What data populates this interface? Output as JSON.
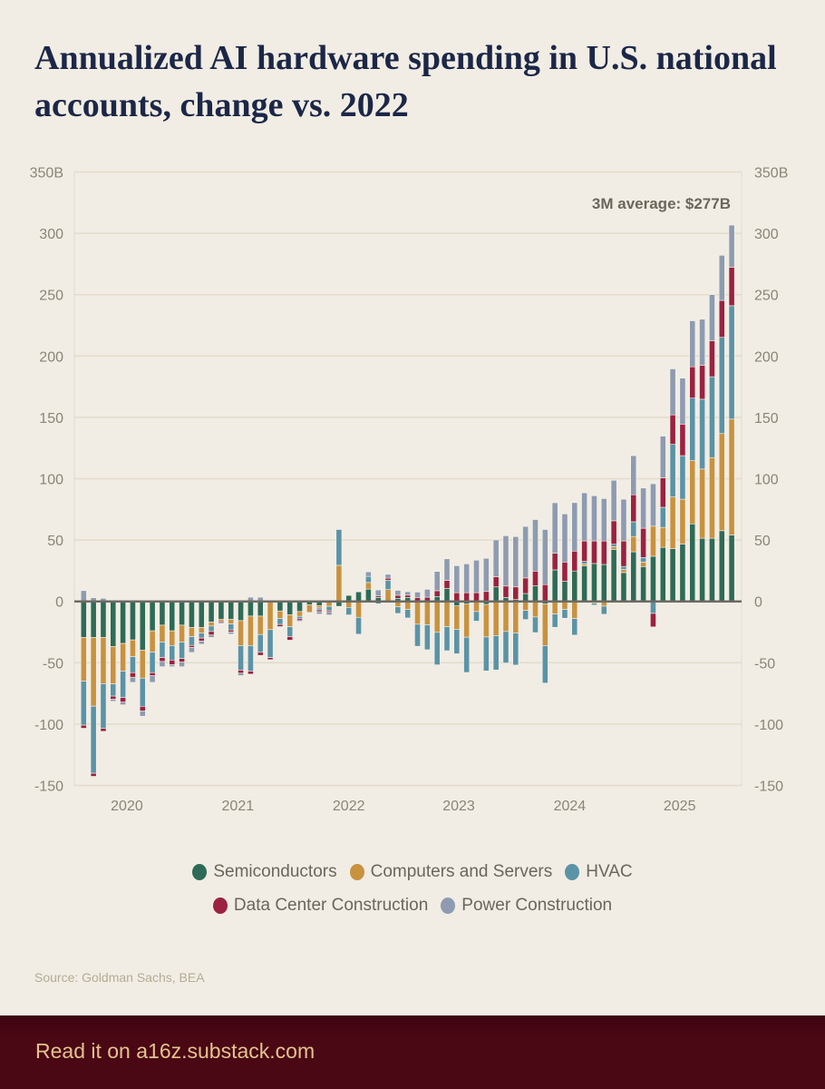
{
  "title": "Annualized AI hardware spending in U.S. national accounts, change vs. 2022",
  "chart_data": {
    "type": "bar",
    "stacked": true,
    "title": "Annualized AI hardware spending in U.S. national accounts, change vs. 2022",
    "ylabel": "",
    "xlabel": "",
    "ylim": [
      -150,
      350
    ],
    "yticks": [
      -150,
      -100,
      -50,
      0,
      50,
      100,
      150,
      200,
      250,
      300,
      350
    ],
    "ytick_labels": [
      "-150",
      "-100",
      "-50",
      "0",
      "50",
      "100",
      "150",
      "200",
      "250",
      "300",
      "350B"
    ],
    "y_axes": "both",
    "grid": true,
    "xticks": [
      {
        "label": "2020",
        "at": 4.4
      },
      {
        "label": "2021",
        "at": 15.7
      },
      {
        "label": "2022",
        "at": 27.0
      },
      {
        "label": "2023",
        "at": 38.2
      },
      {
        "label": "2024",
        "at": 49.5
      },
      {
        "label": "2025",
        "at": 60.7
      }
    ],
    "annotation": "3M average: $277B",
    "legend_position": "bottom",
    "series": [
      {
        "name": "Semiconductors",
        "color": "#2e6b57",
        "values": [
          -29.4,
          -29.4,
          -29.4,
          -36.8,
          -34.3,
          -31.4,
          -39.7,
          -24,
          -19.4,
          -24,
          -19.4,
          -21.3,
          -21.3,
          -16.9,
          -14.5,
          -14.7,
          -15.7,
          -12,
          -12,
          0,
          -7.8,
          -11,
          -8.3,
          -2.9,
          -3.4,
          0,
          -4,
          4.9,
          7.8,
          10,
          3.2,
          0,
          2.5,
          3.2,
          0,
          0,
          4,
          10.5,
          -3.7,
          -2.2,
          0,
          -2.5,
          11.8,
          3.2,
          1.5,
          6.4,
          12.7,
          -2,
          25.7,
          16.4,
          24.8,
          28.9,
          30.9,
          30.1,
          42.4,
          23.5,
          40.4,
          28.4,
          36.8,
          44.1,
          42.9,
          46.8,
          63.2,
          51.5,
          51.5,
          57.6,
          54.2
        ]
      },
      {
        "name": "Computers and Servers",
        "color": "#c8923f",
        "values": [
          -35.5,
          -56,
          -37.7,
          -30.4,
          -22.5,
          -13.7,
          -22.8,
          -17.4,
          -13.7,
          -12,
          -13.7,
          -7.4,
          -4.4,
          -3.2,
          -1.5,
          -3.7,
          -20.3,
          -24,
          -15,
          -23,
          -6.1,
          -9.6,
          -3.9,
          -6.1,
          -2,
          -4,
          29.4,
          -4.9,
          -13,
          5.4,
          0,
          9.6,
          -4.4,
          -6.6,
          -18.6,
          -19.1,
          -25.2,
          -20.6,
          -19.1,
          -27,
          -8.3,
          -26.5,
          -27.9,
          -24.5,
          -25.7,
          -7.4,
          -12.7,
          -34,
          -10.3,
          -6.6,
          -14,
          1.7,
          -1.5,
          -3.9,
          2.2,
          2.5,
          12.5,
          3.7,
          24.5,
          16.2,
          42.2,
          36.5,
          51.5,
          56.4,
          65.7,
          79.2,
          94.4
        ]
      },
      {
        "name": "HVAC",
        "color": "#5b93a6",
        "values": [
          -36,
          -54.7,
          -36.3,
          -10,
          -21.6,
          -13,
          -23,
          -16.7,
          -12.7,
          -11.8,
          -13.5,
          -7.2,
          -4.2,
          -4.4,
          0,
          -4.9,
          -20,
          -20.8,
          -14.5,
          -22.8,
          -4.9,
          -8.1,
          -2,
          0,
          -1.5,
          -3.7,
          29.2,
          -6.1,
          -13.7,
          5,
          -2,
          7.6,
          -5.4,
          -6.9,
          -18,
          -20.3,
          -26.5,
          -19.6,
          -19.9,
          -28.7,
          -7.8,
          -27.7,
          -28,
          -25.7,
          -26.2,
          -7.4,
          -12.7,
          -30.6,
          -10.8,
          -7.1,
          -13.5,
          2,
          -1.5,
          -6.6,
          2,
          2.5,
          12,
          3.7,
          -9.8,
          16.4,
          42.9,
          35.5,
          51,
          56.9,
          65.9,
          78.4,
          92.4
        ]
      },
      {
        "name": "Data Center Construction",
        "color": "#9b2240",
        "values": [
          -2.5,
          -2.5,
          -2.5,
          -2.5,
          -3.7,
          -3.7,
          -3.7,
          -2.5,
          -3.2,
          -3.7,
          -2.9,
          -1.7,
          -2.5,
          -2.9,
          -1.2,
          -1.7,
          -2.5,
          -2.5,
          -2.5,
          -1.7,
          -1.7,
          -2.9,
          -1.5,
          0,
          -1.5,
          -1.2,
          0,
          0,
          0,
          0,
          1.2,
          1.7,
          2.5,
          1.9,
          3.2,
          3.4,
          4.7,
          6.6,
          7.1,
          7.1,
          7.1,
          8.1,
          8.3,
          9.3,
          10.3,
          12.7,
          12,
          13.7,
          13.5,
          15.7,
          16.2,
          16.7,
          18.4,
          19.1,
          19.1,
          20.8,
          22,
          23.8,
          -11,
          24,
          24,
          25.7,
          25.5,
          27.7,
          29.4,
          30.1,
          31.4
        ]
      },
      {
        "name": "Power Construction",
        "color": "#8e9bb0",
        "values": [
          8.8,
          3,
          2.5,
          -1.7,
          -2.2,
          -4.2,
          -4.4,
          -5.4,
          -4.2,
          -1.7,
          -3.7,
          -4,
          -2.5,
          -2,
          -1,
          -1.7,
          -2,
          3.4,
          3.4,
          0,
          -0.7,
          0,
          -0.7,
          0,
          -2,
          -2.2,
          0,
          0,
          0,
          3.7,
          4.9,
          3.2,
          4,
          2.8,
          4.4,
          6.4,
          15.7,
          17.6,
          22,
          23.5,
          26.5,
          27,
          30,
          41,
          41,
          42,
          42,
          44.9,
          41.2,
          39.2,
          39.5,
          39.2,
          36.8,
          34.6,
          33,
          34,
          31.9,
          32.8,
          34.6,
          34,
          37.5,
          37.5,
          37.5,
          37.5,
          37.5,
          36.8,
          34.3
        ]
      }
    ]
  },
  "legend": {
    "row1": [
      {
        "label": "Semiconductors",
        "color": "#2e6b57"
      },
      {
        "label": "Computers and Servers",
        "color": "#c8923f"
      },
      {
        "label": "HVAC",
        "color": "#5b93a6"
      }
    ],
    "row2": [
      {
        "label": "Data Center Construction",
        "color": "#9b2240"
      },
      {
        "label": "Power Construction",
        "color": "#8e9bb0"
      }
    ]
  },
  "source": "Source: Goldman Sachs, BEA",
  "footer": {
    "link_text": "Read it on a16z.substack.com",
    "background": "#4a0714",
    "text_color": "#e2c48f"
  }
}
